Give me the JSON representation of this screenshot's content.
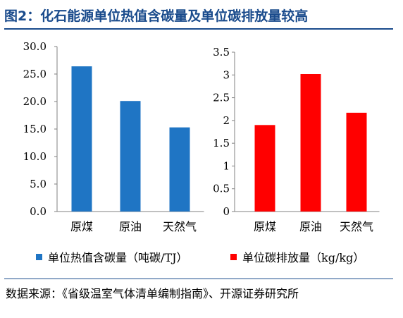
{
  "figure": {
    "title": "图2：化石能源单位热值含碳量及单位碳排放量较高",
    "source": "数据来源：《省级温室气体清单编制指南》、开源证券研究所"
  },
  "colors": {
    "title_blue": "#1a4b8c",
    "bar_blue": "#1f75c4",
    "bar_red": "#ff0000"
  },
  "chart_data": [
    {
      "type": "bar",
      "categories": [
        "原煤",
        "原油",
        "天然气"
      ],
      "series": [
        {
          "name": "单位热值含碳量（吨碳/TJ）",
          "values": [
            26.4,
            20.1,
            15.3
          ]
        }
      ],
      "ylim": [
        0,
        30
      ],
      "ytick_labels": [
        "0.0",
        "5.0",
        "10.0",
        "15.0",
        "20.0",
        "25.0",
        "30.0"
      ],
      "grid": false,
      "legend": "bottom",
      "color": "#1f75c4"
    },
    {
      "type": "bar",
      "categories": [
        "原煤",
        "原油",
        "天然气"
      ],
      "series": [
        {
          "name": "单位碳排放量（kg/kg）",
          "values": [
            1.9,
            3.02,
            2.17
          ]
        }
      ],
      "ylim": [
        0,
        3.5
      ],
      "ytick_labels": [
        "0",
        "0.5",
        "1",
        "1.5",
        "2",
        "2.5",
        "3",
        "3.5"
      ],
      "grid": false,
      "legend": "bottom",
      "color": "#ff0000"
    }
  ]
}
